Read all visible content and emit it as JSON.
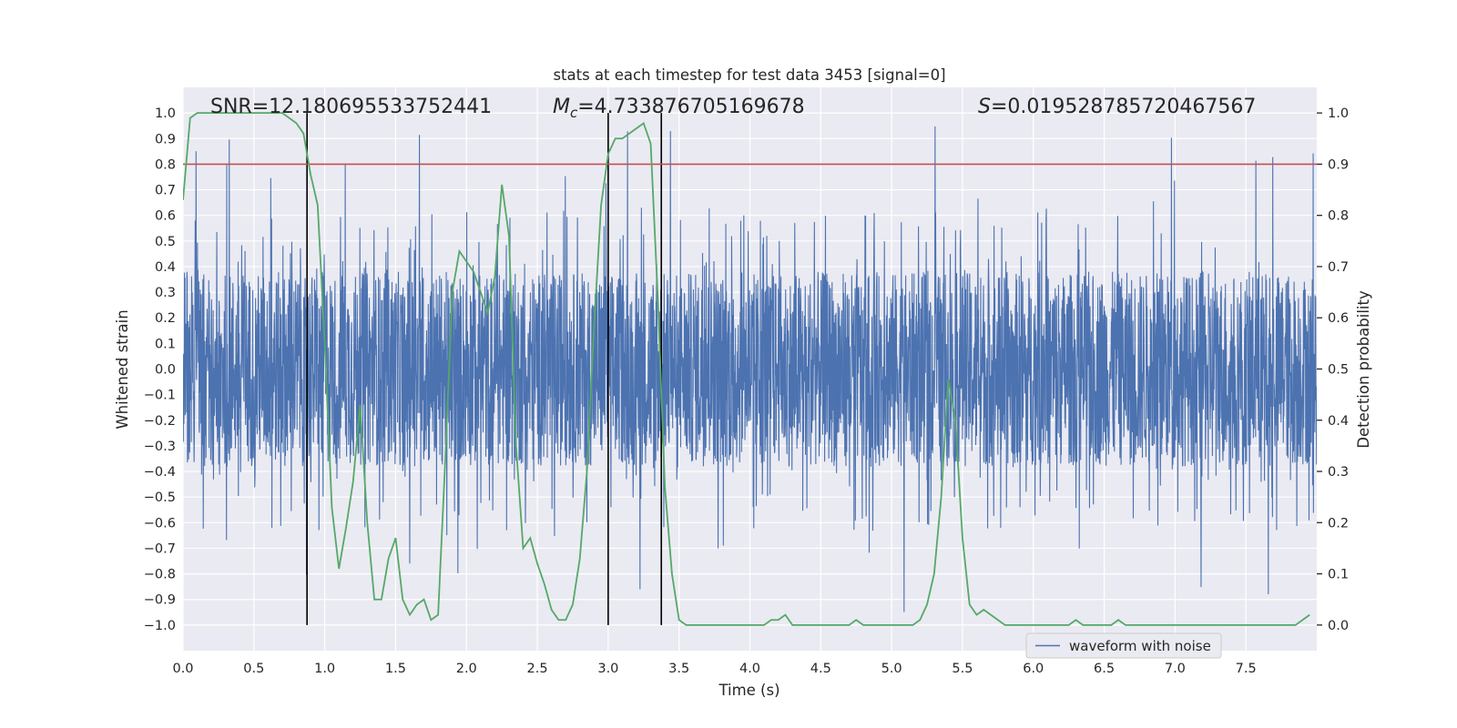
{
  "chart_data": {
    "type": "line",
    "title": "stats at each timestep for test data 3453 [signal=0]",
    "xlabel": "Time (s)",
    "ylabel_left": "Whitened strain",
    "ylabel_right": "Detection probability",
    "xlim": [
      0.0,
      8.0
    ],
    "ylim_left": [
      -1.1,
      1.1
    ],
    "ylim_right": [
      -0.05,
      1.05
    ],
    "x_ticks": [
      0.0,
      0.5,
      1.0,
      1.5,
      2.0,
      2.5,
      3.0,
      3.5,
      4.0,
      4.5,
      5.0,
      5.5,
      6.0,
      6.5,
      7.0,
      7.5
    ],
    "x_tick_labels": [
      "0.0",
      "0.5",
      "1.0",
      "1.5",
      "2.0",
      "2.5",
      "3.0",
      "3.5",
      "4.0",
      "4.5",
      "5.0",
      "5.5",
      "6.0",
      "6.5",
      "7.0",
      "7.5"
    ],
    "y_left_ticks": [
      1.0,
      0.9,
      0.8,
      0.7,
      0.6,
      0.5,
      0.4,
      0.3,
      0.2,
      0.1,
      0.0,
      -0.1,
      -0.2,
      -0.3,
      -0.4,
      -0.5,
      -0.6,
      -0.7,
      -0.8,
      -0.9,
      -1.0
    ],
    "y_left_tick_labels": [
      "1.0",
      "0.9",
      "0.8",
      "0.7",
      "0.6",
      "0.5",
      "0.4",
      "0.3",
      "0.2",
      "0.1",
      "0.0",
      "−0.1",
      "−0.2",
      "−0.3",
      "−0.4",
      "−0.5",
      "−0.6",
      "−0.7",
      "−0.8",
      "−0.9",
      "−1.0"
    ],
    "y_right_ticks": [
      1.0,
      0.9,
      0.8,
      0.7,
      0.6,
      0.5,
      0.4,
      0.3,
      0.2,
      0.1,
      0.0
    ],
    "y_right_tick_labels": [
      "1.0",
      "0.9",
      "0.8",
      "0.7",
      "0.6",
      "0.5",
      "0.4",
      "0.3",
      "0.2",
      "0.1",
      "0.0"
    ],
    "annotations": {
      "snr": "SNR=12.180695533752441",
      "mc_symbol": "M",
      "mc_subscript": "c",
      "mc_value": "=4.733876705169678",
      "s_symbol": "S",
      "s_value": "=0.019528785720467567"
    },
    "threshold": {
      "value": 0.9,
      "axis": "right",
      "color": "#c44e52"
    },
    "vertical_lines": [
      0.875,
      3.0,
      3.375
    ],
    "legend": {
      "label": "waveform with noise",
      "position": "lower-right"
    },
    "series": [
      {
        "name": "waveform with noise",
        "axis": "left",
        "color": "#4c72b0",
        "core_amplitude": 0.38,
        "spike_max": 0.95,
        "spike_min": -1.0
      },
      {
        "name": "detection probability",
        "axis": "right",
        "color": "#55a868",
        "x": [
          0.0,
          0.05,
          0.1,
          0.15,
          0.2,
          0.25,
          0.3,
          0.35,
          0.4,
          0.45,
          0.5,
          0.55,
          0.6,
          0.65,
          0.7,
          0.75,
          0.8,
          0.85,
          0.9,
          0.95,
          1.0,
          1.05,
          1.1,
          1.15,
          1.2,
          1.25,
          1.3,
          1.35,
          1.4,
          1.45,
          1.5,
          1.55,
          1.6,
          1.65,
          1.7,
          1.75,
          1.8,
          1.85,
          1.9,
          1.95,
          2.0,
          2.05,
          2.1,
          2.15,
          2.2,
          2.25,
          2.3,
          2.35,
          2.4,
          2.45,
          2.5,
          2.55,
          2.6,
          2.65,
          2.7,
          2.75,
          2.8,
          2.85,
          2.9,
          2.95,
          3.0,
          3.05,
          3.1,
          3.15,
          3.2,
          3.25,
          3.3,
          3.35,
          3.4,
          3.45,
          3.5,
          3.55,
          3.6,
          3.65,
          3.7,
          3.75,
          3.8,
          3.85,
          3.9,
          3.95,
          4.0,
          4.05,
          4.1,
          4.15,
          4.2,
          4.25,
          4.3,
          4.35,
          4.4,
          4.45,
          4.5,
          4.55,
          4.6,
          4.65,
          4.7,
          4.75,
          4.8,
          4.85,
          4.9,
          4.95,
          5.0,
          5.05,
          5.1,
          5.15,
          5.2,
          5.25,
          5.3,
          5.35,
          5.4,
          5.45,
          5.5,
          5.55,
          5.6,
          5.65,
          5.7,
          5.75,
          5.8,
          5.85,
          5.9,
          5.95,
          6.0,
          6.05,
          6.1,
          6.15,
          6.2,
          6.25,
          6.3,
          6.35,
          6.4,
          6.45,
          6.5,
          6.55,
          6.6,
          6.65,
          6.7,
          6.75,
          6.8,
          6.85,
          6.9,
          6.95,
          7.0,
          7.05,
          7.1,
          7.15,
          7.2,
          7.25,
          7.3,
          7.35,
          7.4,
          7.45,
          7.5,
          7.55,
          7.6,
          7.65,
          7.7,
          7.75,
          7.8,
          7.85,
          7.9,
          7.95
        ],
        "values": [
          0.83,
          0.99,
          1.0,
          1.0,
          1.0,
          1.0,
          1.0,
          1.0,
          1.0,
          1.0,
          1.0,
          1.0,
          1.0,
          1.0,
          1.0,
          0.99,
          0.98,
          0.96,
          0.88,
          0.82,
          0.55,
          0.23,
          0.11,
          0.19,
          0.28,
          0.43,
          0.2,
          0.05,
          0.05,
          0.13,
          0.17,
          0.05,
          0.02,
          0.04,
          0.05,
          0.01,
          0.02,
          0.32,
          0.65,
          0.73,
          0.71,
          0.69,
          0.65,
          0.61,
          0.68,
          0.86,
          0.76,
          0.35,
          0.15,
          0.17,
          0.12,
          0.08,
          0.03,
          0.01,
          0.01,
          0.04,
          0.13,
          0.3,
          0.58,
          0.82,
          0.92,
          0.95,
          0.95,
          0.96,
          0.97,
          0.98,
          0.94,
          0.64,
          0.27,
          0.1,
          0.01,
          0.0,
          0.0,
          0.0,
          0.0,
          0.0,
          0.0,
          0.0,
          0.0,
          0.0,
          0.0,
          0.0,
          0.0,
          0.01,
          0.01,
          0.02,
          0.0,
          0.0,
          0.0,
          0.0,
          0.0,
          0.0,
          0.0,
          0.0,
          0.0,
          0.01,
          0.0,
          0.0,
          0.0,
          0.0,
          0.0,
          0.0,
          0.0,
          0.0,
          0.01,
          0.04,
          0.1,
          0.25,
          0.48,
          0.4,
          0.17,
          0.04,
          0.02,
          0.03,
          0.02,
          0.01,
          0.0,
          0.0,
          0.0,
          0.0,
          0.0,
          0.0,
          0.0,
          0.0,
          0.0,
          0.0,
          0.01,
          0.0,
          0.0,
          0.0,
          0.0,
          0.0,
          0.01,
          0.0,
          0.0,
          0.0,
          0.0,
          0.0,
          0.0,
          0.0,
          0.0,
          0.0,
          0.0,
          0.0,
          0.0,
          0.0,
          0.0,
          0.0,
          0.0,
          0.0,
          0.0,
          0.0,
          0.0,
          0.0,
          0.0,
          0.0,
          0.0,
          0.0,
          0.01,
          0.02
        ]
      }
    ]
  }
}
